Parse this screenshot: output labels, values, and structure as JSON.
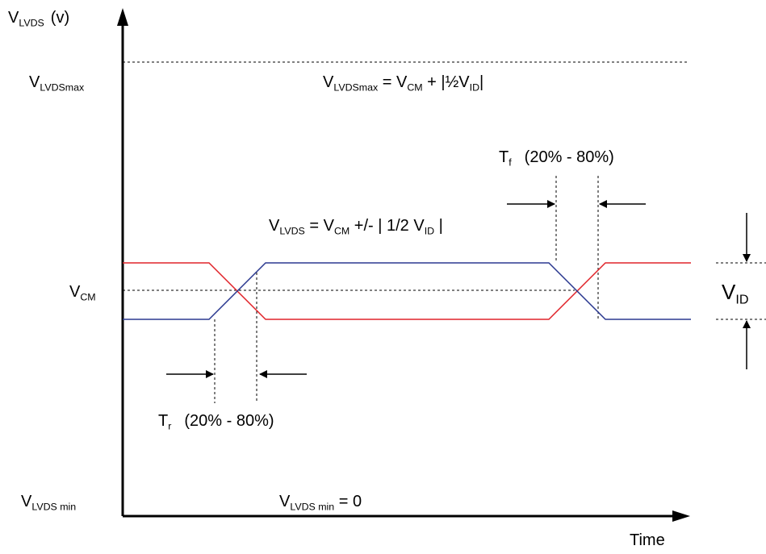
{
  "y_axis_label": {
    "main": "V",
    "sub": "LVDS",
    "unit": "(v)"
  },
  "x_axis_label": "Time",
  "levels": {
    "max": {
      "main": "V",
      "sub": "LVDSmax"
    },
    "cm": {
      "main": "V",
      "sub": "CM"
    },
    "min": {
      "main": "V",
      "sub": "LVDS min"
    }
  },
  "formulas": {
    "max": {
      "a": "V",
      "a_sub": "LVDSmax",
      "eq": " = V",
      "b_sub": "CM",
      "rest": " + |½V",
      "c_sub": "ID",
      "end": "|"
    },
    "swing": {
      "a": "V",
      "a_sub": "LVDS",
      "eq": "  =  V",
      "b_sub": "CM",
      "rest": "  +/-  | 1/2 V",
      "c_sub": "ID",
      "end": " |"
    },
    "min": {
      "a": "V",
      "a_sub": "LVDS min",
      "rest": "  =  0"
    }
  },
  "timing": {
    "rise": {
      "main": "T",
      "sub": "r",
      "range": "(20% - 80%)"
    },
    "fall": {
      "main": "T",
      "sub": "f",
      "range": "(20% - 80%)"
    }
  },
  "vid": {
    "main": "V",
    "sub": "ID"
  },
  "colors": {
    "signal_a": "#e0242a",
    "signal_b": "#2b3990",
    "axis": "#000000"
  }
}
